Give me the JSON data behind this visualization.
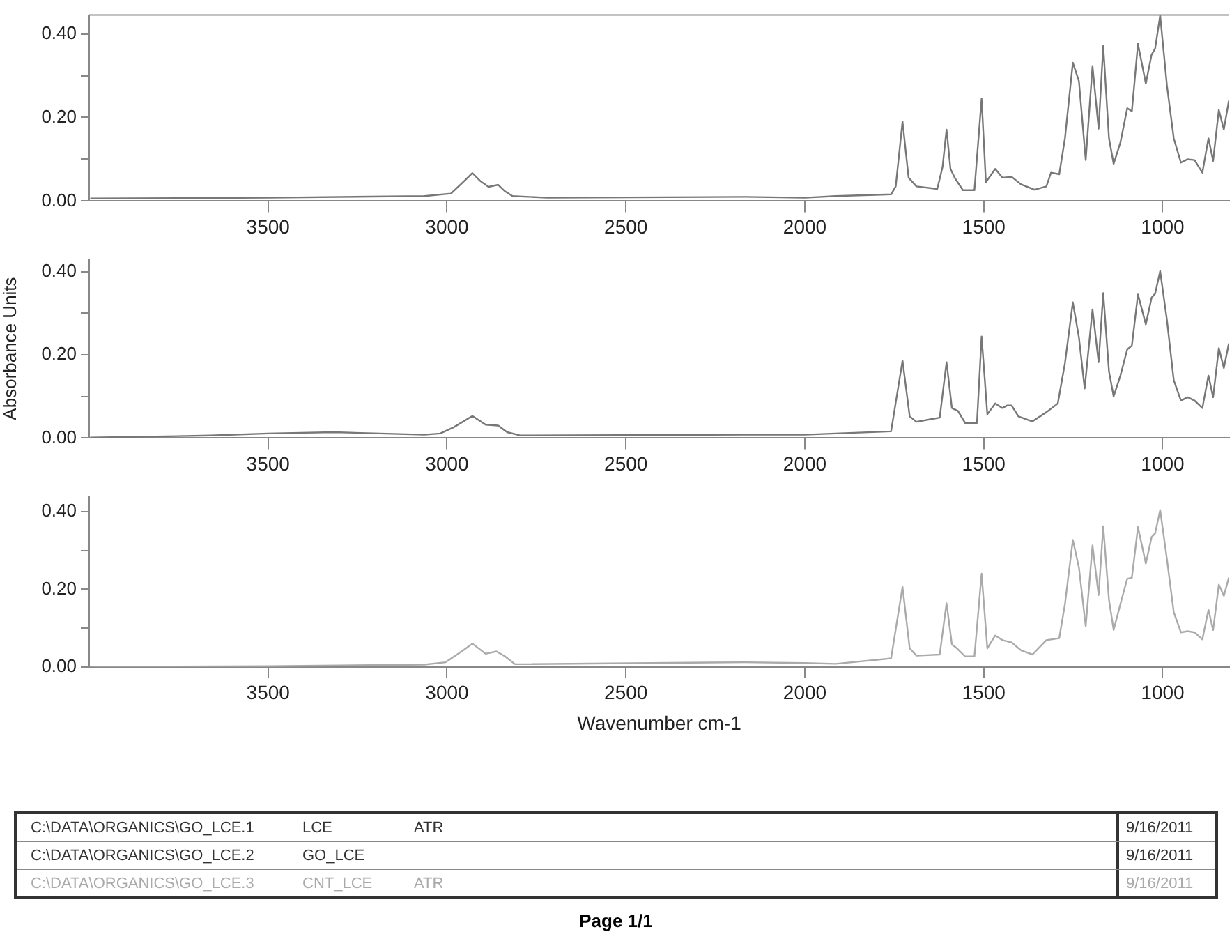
{
  "chart_data": [
    {
      "type": "line",
      "xlim": [
        4000,
        814
      ],
      "xticks": [
        3500,
        3000,
        2500,
        2000,
        1500,
        1000
      ],
      "ylim": [
        0,
        0.445
      ],
      "yticks": [
        {
          "value": 0,
          "label": "0.00"
        },
        {
          "value": 0.1,
          "label": null
        },
        {
          "value": 0.2,
          "label": "0.20"
        },
        {
          "value": 0.3,
          "label": null
        },
        {
          "value": 0.4,
          "label": "0.40"
        }
      ],
      "grid": false,
      "legend": false,
      "marker": "none",
      "line_style": "solid",
      "annotations": [
        "C:\\DATA\\ORGANICS\\GO_LCE.1",
        "LCE",
        "ATR",
        "9/16/2011"
      ],
      "series": [
        {
          "color": "#777777",
          "x": [
            3997,
            3500,
            3063,
            2989,
            2959,
            2929,
            2907,
            2884,
            2857,
            2839,
            2817,
            2720,
            2167,
            2000,
            1914,
            1759,
            1746,
            1727,
            1710,
            1688,
            1630,
            1615,
            1604,
            1593,
            1580,
            1558,
            1526,
            1506,
            1494,
            1468,
            1448,
            1422,
            1396,
            1358,
            1325,
            1312,
            1289,
            1273,
            1251,
            1234,
            1215,
            1196,
            1179,
            1166,
            1150,
            1137,
            1118,
            1099,
            1086,
            1069,
            1047,
            1031,
            1021,
            1007,
            988,
            969,
            949,
            930,
            911,
            889,
            872,
            859,
            843,
            829,
            815
          ],
          "values": [
            0.006,
            0.008,
            0.012,
            0.018,
            0.042,
            0.067,
            0.048,
            0.034,
            0.039,
            0.024,
            0.012,
            0.008,
            0.01,
            0.008,
            0.012,
            0.016,
            0.035,
            0.19,
            0.056,
            0.035,
            0.029,
            0.082,
            0.171,
            0.077,
            0.054,
            0.026,
            0.026,
            0.245,
            0.045,
            0.077,
            0.056,
            0.058,
            0.04,
            0.027,
            0.035,
            0.068,
            0.064,
            0.15,
            0.331,
            0.287,
            0.098,
            0.323,
            0.173,
            0.371,
            0.15,
            0.089,
            0.14,
            0.222,
            0.215,
            0.376,
            0.281,
            0.35,
            0.365,
            0.444,
            0.276,
            0.15,
            0.092,
            0.1,
            0.098,
            0.068,
            0.15,
            0.096,
            0.218,
            0.171,
            0.24
          ]
        }
      ]
    },
    {
      "type": "line",
      "ylabel": "Absorbance Units",
      "xlim": [
        4000,
        814
      ],
      "xticks": [
        3500,
        3000,
        2500,
        2000,
        1500,
        1000
      ],
      "ylim": [
        0,
        0.43
      ],
      "yticks": [
        {
          "value": 0,
          "label": "0.00"
        },
        {
          "value": 0.1,
          "label": null
        },
        {
          "value": 0.2,
          "label": "0.20"
        },
        {
          "value": 0.3,
          "label": null
        },
        {
          "value": 0.4,
          "label": "0.40"
        }
      ],
      "grid": false,
      "legend": false,
      "marker": "none",
      "line_style": "solid",
      "annotations": [
        "C:\\DATA\\ORGANICS\\GO_LCE.2",
        "GO_LCE",
        "9/16/2011"
      ],
      "series": [
        {
          "color": "#777777",
          "x": [
            3997,
            3661,
            3500,
            3317,
            3063,
            3019,
            2981,
            2929,
            2892,
            2857,
            2832,
            2794,
            2167,
            2000,
            1914,
            1759,
            1727,
            1707,
            1688,
            1649,
            1623,
            1604,
            1589,
            1572,
            1552,
            1519,
            1506,
            1490,
            1468,
            1448,
            1435,
            1422,
            1403,
            1364,
            1325,
            1293,
            1273,
            1251,
            1234,
            1218,
            1196,
            1179,
            1166,
            1150,
            1137,
            1118,
            1099,
            1086,
            1069,
            1047,
            1031,
            1021,
            1007,
            988,
            969,
            949,
            930,
            911,
            889,
            872,
            859,
            843,
            829,
            815
          ],
          "values": [
            0.001,
            0.006,
            0.011,
            0.014,
            0.008,
            0.011,
            0.026,
            0.053,
            0.032,
            0.03,
            0.014,
            0.006,
            0.008,
            0.008,
            0.011,
            0.016,
            0.186,
            0.052,
            0.039,
            0.045,
            0.049,
            0.182,
            0.072,
            0.065,
            0.036,
            0.036,
            0.244,
            0.057,
            0.083,
            0.072,
            0.078,
            0.078,
            0.052,
            0.04,
            0.062,
            0.083,
            0.18,
            0.326,
            0.242,
            0.119,
            0.309,
            0.182,
            0.348,
            0.16,
            0.1,
            0.15,
            0.213,
            0.222,
            0.345,
            0.273,
            0.337,
            0.347,
            0.401,
            0.283,
            0.139,
            0.09,
            0.098,
            0.09,
            0.072,
            0.15,
            0.098,
            0.216,
            0.168,
            0.227
          ]
        }
      ]
    },
    {
      "type": "line",
      "xlabel": "Wavenumber cm-1",
      "xlim": [
        4000,
        814
      ],
      "xticks": [
        3500,
        3000,
        2500,
        2000,
        1500,
        1000
      ],
      "ylim": [
        0,
        0.44
      ],
      "yticks": [
        {
          "value": 0,
          "label": "0.00"
        },
        {
          "value": 0.1,
          "label": null
        },
        {
          "value": 0.2,
          "label": "0.20"
        },
        {
          "value": 0.3,
          "label": null
        },
        {
          "value": 0.4,
          "label": "0.40"
        }
      ],
      "grid": false,
      "legend": false,
      "marker": "none",
      "line_style": "solid",
      "annotations": [
        "C:\\DATA\\ORGANICS\\GO_LCE.3",
        "CNT_LCE",
        "ATR",
        "9/16/2011",
        "Page 1/1"
      ],
      "series": [
        {
          "color": "#aaaaaa",
          "x": [
            3997,
            3500,
            3063,
            3004,
            2959,
            2929,
            2892,
            2862,
            2839,
            2810,
            2167,
            2000,
            1914,
            1759,
            1727,
            1707,
            1688,
            1623,
            1604,
            1589,
            1575,
            1552,
            1526,
            1506,
            1490,
            1468,
            1448,
            1422,
            1396,
            1364,
            1325,
            1289,
            1273,
            1251,
            1234,
            1215,
            1196,
            1179,
            1166,
            1150,
            1137,
            1118,
            1099,
            1086,
            1069,
            1047,
            1031,
            1021,
            1007,
            988,
            969,
            949,
            930,
            911,
            889,
            872,
            859,
            843,
            829,
            815
          ],
          "values": [
            0.0,
            0.002,
            0.006,
            0.012,
            0.04,
            0.06,
            0.034,
            0.04,
            0.028,
            0.007,
            0.012,
            0.01,
            0.008,
            0.022,
            0.206,
            0.048,
            0.029,
            0.032,
            0.164,
            0.058,
            0.048,
            0.027,
            0.027,
            0.24,
            0.048,
            0.081,
            0.069,
            0.063,
            0.043,
            0.032,
            0.069,
            0.074,
            0.162,
            0.327,
            0.256,
            0.105,
            0.313,
            0.185,
            0.362,
            0.173,
            0.095,
            0.162,
            0.227,
            0.23,
            0.36,
            0.266,
            0.334,
            0.344,
            0.404,
            0.277,
            0.141,
            0.089,
            0.092,
            0.089,
            0.071,
            0.147,
            0.095,
            0.212,
            0.183,
            0.23
          ]
        }
      ]
    }
  ]
}
